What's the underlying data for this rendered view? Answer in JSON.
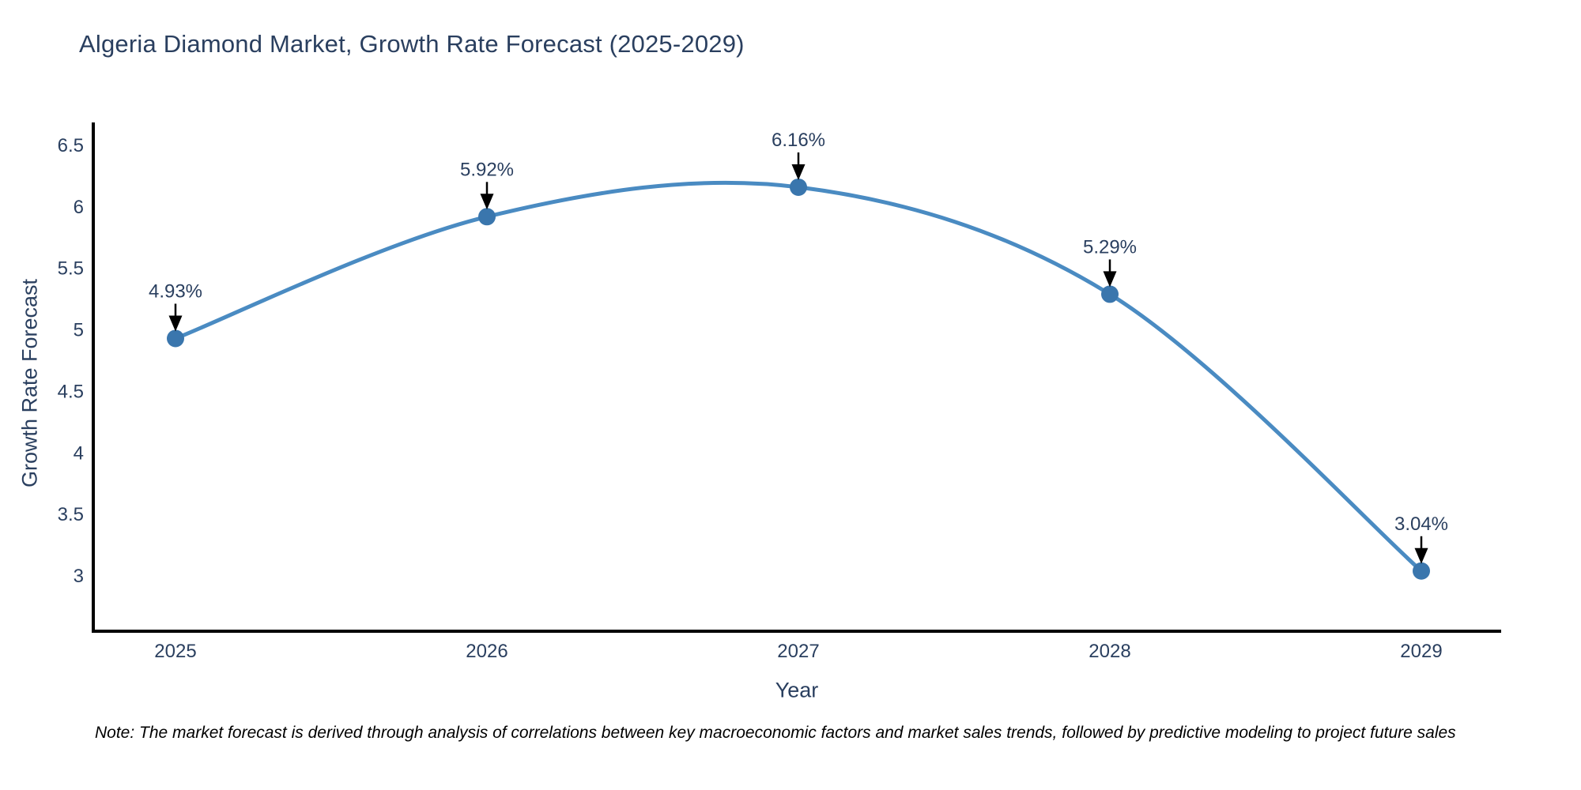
{
  "page": {
    "background": "#ffffff"
  },
  "chart_data": {
    "type": "line",
    "title": "Algeria Diamond Market, Growth Rate Forecast (2025-2029)",
    "xlabel": "Year",
    "ylabel": "Growth Rate Forecast",
    "x": [
      2025,
      2026,
      2027,
      2028,
      2029
    ],
    "values": [
      4.93,
      5.92,
      6.16,
      5.29,
      3.04
    ],
    "point_labels": [
      "4.93%",
      "5.92%",
      "6.16%",
      "5.29%",
      "3.04%"
    ],
    "x_tick_labels": [
      "2025",
      "2026",
      "2027",
      "2028",
      "2029"
    ],
    "y_ticks": [
      6.5,
      6,
      5.5,
      5,
      4.5,
      4,
      3.5,
      3
    ],
    "y_range": [
      2.55,
      6.69
    ],
    "line_shape": "spline",
    "grid": false,
    "legend": "none",
    "colors": {
      "line": "#4a8bc2",
      "marker": "#3a76ad",
      "axis": "#000000",
      "text": "#2a3f5f",
      "annotation_arrow": "#000000"
    }
  },
  "note": {
    "text": "Note: The market forecast is derived through analysis of correlations between key macroeconomic factors and market sales trends, followed by predictive modeling to project future sales"
  }
}
